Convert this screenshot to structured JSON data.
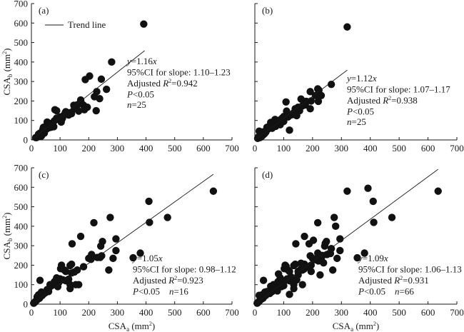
{
  "chart_data": [
    {
      "type": "scatter",
      "panel_label": "(a)",
      "xlabel": "",
      "ylabel": "CSA",
      "ylabel_sub": "b",
      "ylabel_unit": " (mm",
      "ylabel_sup": "2",
      "ylabel_close": ")",
      "xlim": [
        0,
        700
      ],
      "ylim": [
        0,
        700
      ],
      "xticks": [
        0,
        100,
        200,
        300,
        400,
        500,
        600,
        700
      ],
      "yticks": [
        0,
        100,
        200,
        300,
        400,
        500,
        600,
        700
      ],
      "show_y_tick_labels": true,
      "legend": {
        "label": "Trend line",
        "placement": "top-left"
      },
      "slope": 1.16,
      "trend_x_range": [
        0,
        395
      ],
      "annotation": [
        "y=1.16x",
        "95%CI for slope: 1.10–1.23",
        "Adjusted R²=0.942",
        "P<0.05",
        "n=25"
      ],
      "annotation_parts": {
        "eq_var": "y",
        "eq_rest": "=1.16",
        "eq_x": "x",
        "ci": "95%CI for slope: 1.10–1.23",
        "r2_pre": "Adjusted ",
        "r2_var": "R",
        "r2_sup": "2",
        "r2_val": "=0.942",
        "p_var": "P",
        "p_val": "<0.05",
        "n_var": "n",
        "n_val": "=25",
        "same_line_pn": false
      },
      "points": [
        [
          392,
          595
        ],
        [
          280,
          400
        ],
        [
          203,
          328
        ],
        [
          188,
          310
        ],
        [
          244,
          312
        ],
        [
          262,
          260
        ],
        [
          228,
          248
        ],
        [
          220,
          222
        ],
        [
          238,
          212
        ],
        [
          226,
          150
        ],
        [
          172,
          205
        ],
        [
          175,
          188
        ],
        [
          182,
          178
        ],
        [
          195,
          168
        ],
        [
          185,
          155
        ],
        [
          160,
          180
        ],
        [
          148,
          178
        ],
        [
          165,
          148
        ],
        [
          155,
          172
        ],
        [
          135,
          140
        ],
        [
          128,
          130
        ],
        [
          118,
          138
        ],
        [
          112,
          125
        ],
        [
          108,
          110
        ],
        [
          100,
          118
        ],
        [
          96,
          105
        ],
        [
          88,
          112
        ],
        [
          104,
          92
        ],
        [
          82,
          155
        ],
        [
          88,
          150
        ],
        [
          80,
          98
        ],
        [
          78,
          68
        ],
        [
          70,
          85
        ],
        [
          62,
          80
        ],
        [
          58,
          72
        ],
        [
          55,
          92
        ],
        [
          50,
          70
        ],
        [
          48,
          60
        ],
        [
          45,
          48
        ],
        [
          42,
          65
        ],
        [
          40,
          55
        ],
        [
          38,
          42
        ],
        [
          35,
          38
        ],
        [
          32,
          30
        ],
        [
          30,
          35
        ],
        [
          28,
          25
        ],
        [
          25,
          22
        ],
        [
          22,
          18
        ],
        [
          20,
          15
        ],
        [
          18,
          12
        ],
        [
          15,
          12
        ],
        [
          25,
          30
        ],
        [
          35,
          20
        ],
        [
          45,
          35
        ],
        [
          52,
          55
        ],
        [
          60,
          62
        ],
        [
          68,
          65
        ],
        [
          72,
          75
        ],
        [
          120,
          145
        ],
        [
          140,
          135
        ],
        [
          130,
          128
        ],
        [
          150,
          160
        ],
        [
          170,
          190
        ]
      ]
    },
    {
      "type": "scatter",
      "panel_label": "(b)",
      "xlabel": "",
      "ylabel": "",
      "xlim": [
        0,
        700
      ],
      "ylim": [
        0,
        700
      ],
      "xticks": [
        0,
        100,
        200,
        300,
        400,
        500,
        600,
        700
      ],
      "yticks": [
        0,
        100,
        200,
        300,
        400,
        500,
        600,
        700
      ],
      "show_y_tick_labels": false,
      "slope": 1.12,
      "trend_x_range": [
        0,
        320
      ],
      "annotation": [
        "y=1.12x",
        "95%CI for slope: 1.07–1.17",
        "Adjusted R²=0.938",
        "P<0.05",
        "n=25"
      ],
      "annotation_parts": {
        "eq_var": "y",
        "eq_rest": "=1.12",
        "eq_x": "x",
        "ci": "95%CI for slope: 1.07–1.17",
        "r2_pre": "Adjusted ",
        "r2_var": "R",
        "r2_sup": "2",
        "r2_val": "=0.938",
        "p_var": "P",
        "p_val": "<0.05",
        "n_var": "n",
        "n_val": "=25",
        "same_line_pn": false
      },
      "points": [
        [
          320,
          580
        ],
        [
          265,
          285
        ],
        [
          218,
          262
        ],
        [
          192,
          248
        ],
        [
          222,
          255
        ],
        [
          230,
          228
        ],
        [
          210,
          228
        ],
        [
          220,
          198
        ],
        [
          195,
          200
        ],
        [
          192,
          160
        ],
        [
          178,
          198
        ],
        [
          170,
          195
        ],
        [
          160,
          210
        ],
        [
          165,
          175
        ],
        [
          150,
          168
        ],
        [
          140,
          160
        ],
        [
          145,
          125
        ],
        [
          130,
          130
        ],
        [
          120,
          125
        ],
        [
          110,
          148
        ],
        [
          108,
          195
        ],
        [
          115,
          118
        ],
        [
          100,
          120
        ],
        [
          95,
          112
        ],
        [
          90,
          105
        ],
        [
          85,
          100
        ],
        [
          80,
          92
        ],
        [
          75,
          95
        ],
        [
          70,
          105
        ],
        [
          68,
          80
        ],
        [
          62,
          88
        ],
        [
          58,
          75
        ],
        [
          55,
          90
        ],
        [
          50,
          70
        ],
        [
          48,
          60
        ],
        [
          45,
          55
        ],
        [
          42,
          65
        ],
        [
          40,
          48
        ],
        [
          38,
          40
        ],
        [
          35,
          35
        ],
        [
          32,
          30
        ],
        [
          30,
          42
        ],
        [
          28,
          25
        ],
        [
          25,
          20
        ],
        [
          22,
          18
        ],
        [
          20,
          15
        ],
        [
          18,
          12
        ],
        [
          15,
          45
        ],
        [
          12,
          15
        ],
        [
          10,
          8
        ],
        [
          120,
          50
        ],
        [
          60,
          60
        ],
        [
          72,
          70
        ],
        [
          88,
          78
        ],
        [
          100,
          95
        ],
        [
          135,
          140
        ],
        [
          155,
          150
        ],
        [
          175,
          180
        ]
      ]
    },
    {
      "type": "scatter",
      "panel_label": "(c)",
      "xlabel": "CSA",
      "xlabel_sub": "a",
      "xlabel_unit": " (mm",
      "xlabel_sup": "2",
      "xlabel_close": ")",
      "ylabel": "CSA",
      "ylabel_sub": "b",
      "ylabel_unit": " (mm",
      "ylabel_sup": "2",
      "ylabel_close": ")",
      "xlim": [
        0,
        700
      ],
      "ylim": [
        0,
        700
      ],
      "xticks": [
        0,
        100,
        200,
        300,
        400,
        500,
        600,
        700
      ],
      "yticks": [
        0,
        100,
        200,
        300,
        400,
        500,
        600,
        700
      ],
      "show_y_tick_labels": true,
      "slope": 1.05,
      "trend_x_range": [
        0,
        635
      ],
      "annotation": [
        "y=1.05x",
        "95%CI for slope: 0.98–1.12",
        "Adjusted R²=0.923",
        "P<0.05   n=16"
      ],
      "annotation_parts": {
        "eq_var": "y",
        "eq_rest": "=1.05",
        "eq_x": "x",
        "ci": "95%CI for slope: 0.98–1.12",
        "r2_pre": "Adjusted ",
        "r2_var": "R",
        "r2_sup": "2",
        "r2_val": "=0.923",
        "p_var": "P",
        "p_val": "<0.05",
        "n_var": "n",
        "n_val": "=16",
        "same_line_pn": true
      },
      "points": [
        [
          635,
          580
        ],
        [
          410,
          528
        ],
        [
          412,
          420
        ],
        [
          475,
          445
        ],
        [
          275,
          445
        ],
        [
          218,
          418
        ],
        [
          172,
          348
        ],
        [
          142,
          310
        ],
        [
          248,
          322
        ],
        [
          295,
          335
        ],
        [
          242,
          298
        ],
        [
          210,
          255
        ],
        [
          208,
          230
        ],
        [
          245,
          248
        ],
        [
          240,
          240
        ],
        [
          295,
          275
        ],
        [
          285,
          235
        ],
        [
          380,
          262
        ],
        [
          355,
          238
        ],
        [
          270,
          175
        ],
        [
          182,
          192
        ],
        [
          140,
          205
        ],
        [
          135,
          198
        ],
        [
          105,
          200
        ],
        [
          102,
          182
        ],
        [
          115,
          175
        ],
        [
          120,
          168
        ],
        [
          160,
          175
        ],
        [
          150,
          165
        ],
        [
          140,
          160
        ],
        [
          130,
          128
        ],
        [
          120,
          120
        ],
        [
          110,
          125
        ],
        [
          100,
          130
        ],
        [
          95,
          110
        ],
        [
          88,
          135
        ],
        [
          85,
          100
        ],
        [
          80,
          115
        ],
        [
          92,
          90
        ],
        [
          70,
          95
        ],
        [
          65,
          100
        ],
        [
          60,
          65
        ],
        [
          55,
          75
        ],
        [
          135,
          100
        ],
        [
          135,
          80
        ],
        [
          155,
          100
        ],
        [
          165,
          100
        ],
        [
          30,
          122
        ],
        [
          50,
          60
        ],
        [
          45,
          55
        ],
        [
          40,
          50
        ],
        [
          38,
          45
        ],
        [
          35,
          62
        ],
        [
          32,
          40
        ],
        [
          30,
          35
        ],
        [
          28,
          30
        ],
        [
          25,
          48
        ],
        [
          22,
          25
        ],
        [
          20,
          38
        ],
        [
          18,
          20
        ],
        [
          15,
          15
        ],
        [
          12,
          10
        ],
        [
          10,
          8
        ],
        [
          8,
          5
        ],
        [
          200,
          235
        ],
        [
          230,
          240
        ]
      ]
    },
    {
      "type": "scatter",
      "panel_label": "(d)",
      "xlabel": "CSA",
      "xlabel_sub": "a",
      "xlabel_unit": " (mm",
      "xlabel_sup": "2",
      "xlabel_close": ")",
      "ylabel": "",
      "xlim": [
        0,
        700
      ],
      "ylim": [
        0,
        700
      ],
      "xticks": [
        0,
        100,
        200,
        300,
        400,
        500,
        600,
        700
      ],
      "yticks": [
        0,
        100,
        200,
        300,
        400,
        500,
        600,
        700
      ],
      "show_y_tick_labels": false,
      "slope": 1.09,
      "trend_x_range": [
        0,
        635
      ],
      "annotation": [
        "y=1.09x",
        "95%CI for slope: 1.06–1.13",
        "Adjusted R²=0.931",
        "P<0.05   n=66"
      ],
      "annotation_parts": {
        "eq_var": "y",
        "eq_rest": "=1.09",
        "eq_x": "x",
        "ci": "95%CI for slope: 1.06–1.13",
        "r2_pre": "Adjusted ",
        "r2_var": "R",
        "r2_sup": "2",
        "r2_val": "=0.931",
        "p_var": "P",
        "p_val": "<0.05",
        "n_var": "n",
        "n_val": "=66",
        "same_line_pn": true
      },
      "points": [
        [
          635,
          580
        ],
        [
          392,
          595
        ],
        [
          320,
          580
        ],
        [
          410,
          528
        ],
        [
          412,
          420
        ],
        [
          475,
          445
        ],
        [
          275,
          445
        ],
        [
          280,
          400
        ],
        [
          218,
          418
        ],
        [
          172,
          348
        ],
        [
          203,
          328
        ],
        [
          142,
          310
        ],
        [
          188,
          310
        ],
        [
          248,
          322
        ],
        [
          244,
          312
        ],
        [
          295,
          335
        ],
        [
          242,
          298
        ],
        [
          262,
          260
        ],
        [
          265,
          285
        ],
        [
          295,
          275
        ],
        [
          285,
          235
        ],
        [
          380,
          262
        ],
        [
          355,
          238
        ],
        [
          270,
          175
        ],
        [
          228,
          248
        ],
        [
          222,
          255
        ],
        [
          218,
          262
        ],
        [
          230,
          228
        ],
        [
          220,
          222
        ],
        [
          238,
          212
        ],
        [
          226,
          150
        ],
        [
          210,
          228
        ],
        [
          192,
          248
        ],
        [
          195,
          200
        ],
        [
          182,
          192
        ],
        [
          172,
          205
        ],
        [
          160,
          210
        ],
        [
          150,
          168
        ],
        [
          140,
          205
        ],
        [
          135,
          198
        ],
        [
          105,
          200
        ],
        [
          108,
          195
        ],
        [
          102,
          182
        ],
        [
          115,
          175
        ],
        [
          120,
          168
        ],
        [
          165,
          175
        ],
        [
          155,
          172
        ],
        [
          145,
          125
        ],
        [
          130,
          128
        ],
        [
          120,
          120
        ],
        [
          110,
          125
        ],
        [
          100,
          118
        ],
        [
          95,
          110
        ],
        [
          88,
          135
        ],
        [
          88,
          112
        ],
        [
          85,
          100
        ],
        [
          80,
          115
        ],
        [
          82,
          155
        ],
        [
          92,
          90
        ],
        [
          78,
          68
        ],
        [
          70,
          95
        ],
        [
          65,
          100
        ],
        [
          60,
          65
        ],
        [
          55,
          92
        ],
        [
          135,
          100
        ],
        [
          135,
          80
        ],
        [
          165,
          100
        ],
        [
          120,
          50
        ],
        [
          30,
          122
        ],
        [
          50,
          60
        ],
        [
          45,
          55
        ],
        [
          40,
          50
        ],
        [
          38,
          45
        ],
        [
          35,
          62
        ],
        [
          32,
          40
        ],
        [
          30,
          35
        ],
        [
          28,
          30
        ],
        [
          25,
          48
        ],
        [
          22,
          25
        ],
        [
          20,
          38
        ],
        [
          18,
          20
        ],
        [
          15,
          45
        ],
        [
          15,
          15
        ],
        [
          12,
          10
        ],
        [
          10,
          8
        ],
        [
          8,
          5
        ],
        [
          200,
          235
        ],
        [
          185,
          190
        ],
        [
          170,
          180
        ],
        [
          150,
          150
        ],
        [
          125,
          140
        ],
        [
          112,
          130
        ],
        [
          72,
          75
        ],
        [
          68,
          80
        ],
        [
          62,
          88
        ],
        [
          58,
          72
        ],
        [
          48,
          60
        ],
        [
          42,
          65
        ],
        [
          52,
          55
        ],
        [
          100,
          95
        ],
        [
          175,
          188
        ],
        [
          195,
          168
        ],
        [
          160,
          180
        ],
        [
          250,
          255
        ],
        [
          235,
          250
        ]
      ]
    }
  ]
}
